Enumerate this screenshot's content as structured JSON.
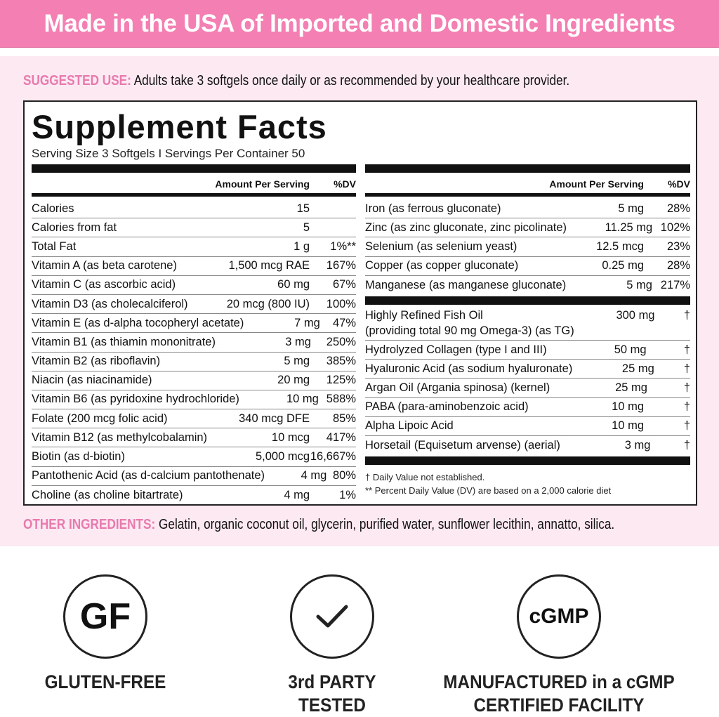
{
  "banner": "Made in the USA of Imported and Domestic Ingredients",
  "suggested_use": {
    "label": "SUGGESTED USE:",
    "text": "Adults take 3 softgels once daily or as recommended by your healthcare provider."
  },
  "facts": {
    "title": "Supplement Facts",
    "serving": "Serving Size 3 Softgels  I  Servings Per Container 50",
    "header_amount": "Amount Per Serving",
    "header_dv": "%DV",
    "left": [
      [
        "Calories",
        "15",
        ""
      ],
      [
        "Calories from fat",
        "5",
        ""
      ],
      [
        "Total Fat",
        "1 g",
        "1%**"
      ],
      [
        "Vitamin A (as beta carotene)",
        "1,500 mcg RAE",
        "167%"
      ],
      [
        "Vitamin C (as ascorbic acid)",
        "60 mg",
        "67%"
      ],
      [
        "Vitamin D3 (as cholecalciferol)",
        "20 mcg (800 IU)",
        "100%"
      ],
      [
        "Vitamin E (as d-alpha tocopheryl acetate)",
        "7 mg",
        "47%"
      ],
      [
        "Vitamin B1 (as thiamin mononitrate)",
        "3 mg",
        "250%"
      ],
      [
        "Vitamin B2 (as riboflavin)",
        "5 mg",
        "385%"
      ],
      [
        "Niacin (as niacinamide)",
        "20 mg",
        "125%"
      ],
      [
        "Vitamin B6 (as pyridoxine hydrochloride)",
        "10 mg",
        "588%"
      ],
      [
        "Folate (200 mcg folic acid)",
        "340 mcg DFE",
        "85%"
      ],
      [
        "Vitamin B12 (as methylcobalamin)",
        "10 mcg",
        "417%"
      ],
      [
        "Biotin (as d-biotin)",
        "5,000 mcg",
        "16,667%"
      ],
      [
        "Pantothenic Acid (as d-calcium pantothenate)",
        "4 mg",
        "80%"
      ],
      [
        "Choline (as choline bitartrate)",
        "4 mg",
        "1%"
      ]
    ],
    "right_minerals": [
      [
        "Iron (as ferrous gluconate)",
        "5 mg",
        "28%"
      ],
      [
        "Zinc (as zinc gluconate, zinc picolinate)",
        "11.25 mg",
        "102%"
      ],
      [
        "Selenium (as selenium yeast)",
        "12.5 mcg",
        "23%"
      ],
      [
        "Copper (as copper gluconate)",
        "0.25 mg",
        "28%"
      ],
      [
        "Manganese (as manganese gluconate)",
        "5 mg",
        "217%"
      ]
    ],
    "right_other": [
      [
        "Highly Refined Fish Oil\n(providing total 90 mg Omega-3) (as TG)",
        "300 mg",
        "†"
      ],
      [
        "Hydrolyzed Collagen (type I and III)",
        "50 mg",
        "†"
      ],
      [
        "Hyaluronic Acid (as sodium hyaluronate)",
        "25 mg",
        "†"
      ],
      [
        "Argan Oil (Argania spinosa) (kernel)",
        "25 mg",
        "†"
      ],
      [
        "PABA (para-aminobenzoic acid)",
        "10 mg",
        "†"
      ],
      [
        "Alpha Lipoic Acid",
        "10 mg",
        "†"
      ],
      [
        "Horsetail (Equisetum arvense) (aerial)",
        "3 mg",
        "†"
      ]
    ],
    "footnote1": "†  Daily Value not established.",
    "footnote2": "** Percent Daily Value (DV) are based on a 2,000 calorie diet"
  },
  "other_ingredients": {
    "label": "OTHER INGREDIENTS:",
    "text": "Gelatin, organic coconut oil, glycerin, purified water, sunflower lecithin, annatto, silica."
  },
  "badges": [
    {
      "icon": "GF",
      "label1": "GLUTEN-FREE",
      "label2": ""
    },
    {
      "icon": "check-icon",
      "label1": "3rd PARTY",
      "label2": "TESTED"
    },
    {
      "icon": "cGMP",
      "label1": "MANUFACTURED in a cGMP",
      "label2": "CERTIFIED FACILITY"
    }
  ],
  "colors": {
    "banner": "#f47fb2",
    "panel": "#fde9f2",
    "label": "#e87aae"
  }
}
